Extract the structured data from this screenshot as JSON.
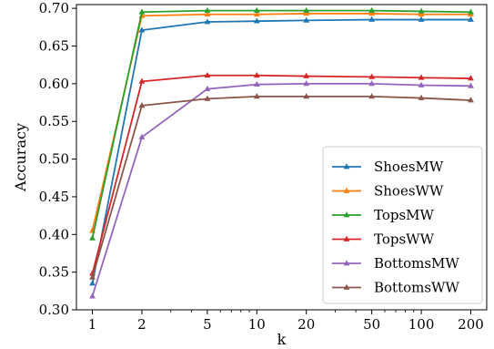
{
  "chart_data": {
    "type": "line",
    "xlabel": "k",
    "ylabel": "Accuracy",
    "xscale": "log",
    "x": [
      1,
      2,
      5,
      10,
      20,
      50,
      100,
      200
    ],
    "xtick_labels": [
      "1",
      "2",
      "5",
      "10",
      "20",
      "50",
      "100",
      "200"
    ],
    "xlim": [
      0.8,
      250
    ],
    "ylim": [
      0.3,
      0.705
    ],
    "yticks": [
      0.3,
      0.35,
      0.4,
      0.45,
      0.5,
      0.55,
      0.6,
      0.65,
      0.7
    ],
    "ytick_labels": [
      "0.30",
      "0.35",
      "0.40",
      "0.45",
      "0.50",
      "0.55",
      "0.60",
      "0.65",
      "0.70"
    ],
    "grid": false,
    "legend_position": "bottom-right",
    "marker": "triangle",
    "series": [
      {
        "name": "ShoesMW",
        "color": "#1f77b4",
        "values": [
          0.335,
          0.671,
          0.682,
          0.683,
          0.684,
          0.685,
          0.685,
          0.685
        ]
      },
      {
        "name": "ShoesWW",
        "color": "#ff7f0e",
        "values": [
          0.405,
          0.69,
          0.692,
          0.692,
          0.693,
          0.693,
          0.692,
          0.692
        ]
      },
      {
        "name": "TopsMW",
        "color": "#2ca02c",
        "values": [
          0.395,
          0.695,
          0.697,
          0.697,
          0.697,
          0.697,
          0.696,
          0.695
        ]
      },
      {
        "name": "TopsWW",
        "color": "#d62728",
        "values": [
          0.348,
          0.603,
          0.611,
          0.611,
          0.61,
          0.609,
          0.608,
          0.607
        ]
      },
      {
        "name": "BottomsMW",
        "color": "#9467bd",
        "values": [
          0.318,
          0.529,
          0.593,
          0.599,
          0.6,
          0.6,
          0.598,
          0.597
        ]
      },
      {
        "name": "BottomsWW",
        "color": "#8c564b",
        "values": [
          0.343,
          0.571,
          0.58,
          0.583,
          0.583,
          0.583,
          0.581,
          0.578
        ]
      }
    ]
  }
}
